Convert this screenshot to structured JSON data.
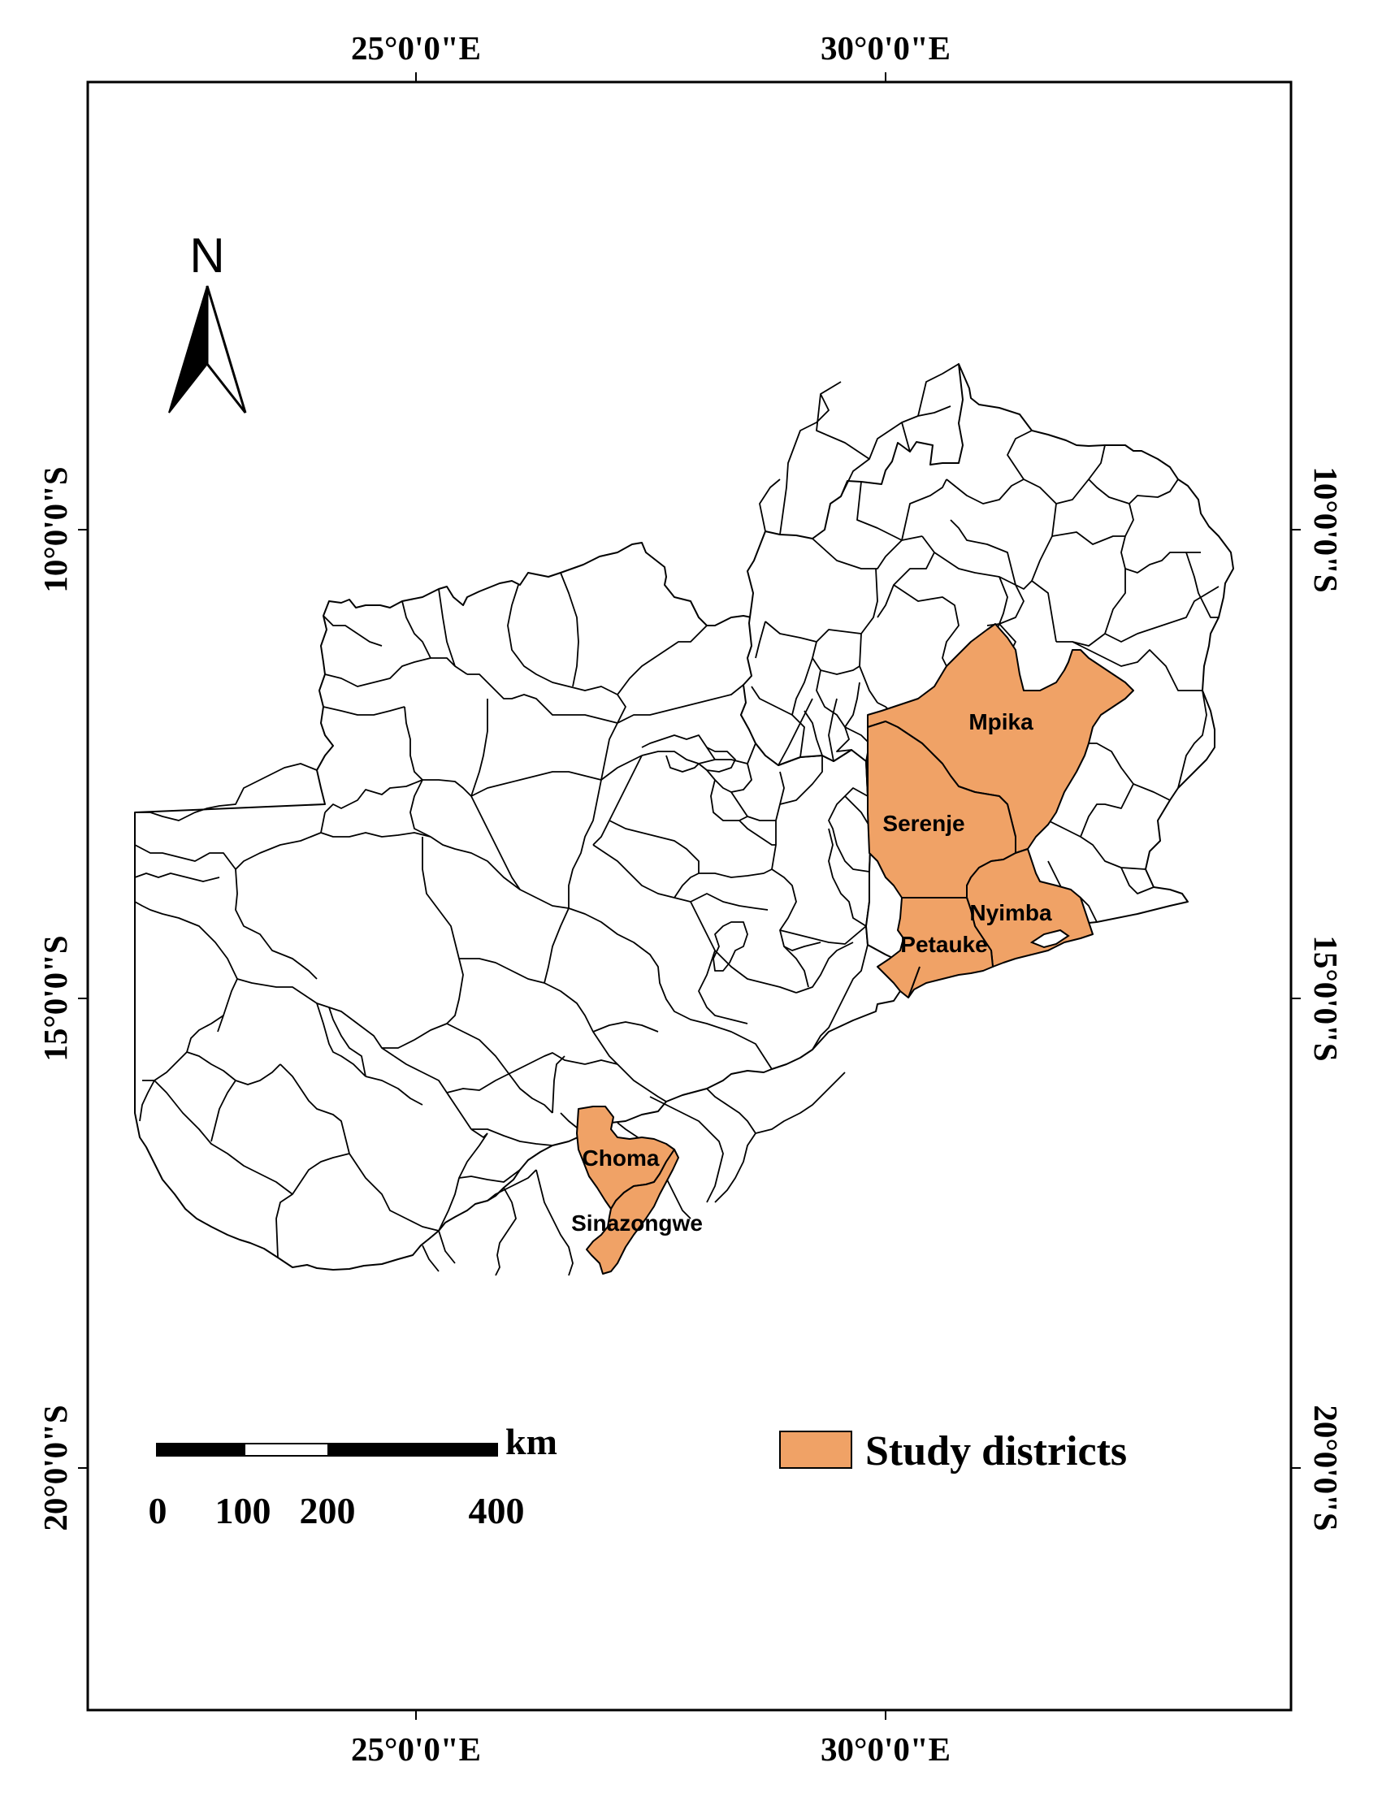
{
  "map": {
    "graticule": {
      "longitudes": [
        "25°0'0\"E",
        "30°0'0\"E"
      ],
      "latitudes": [
        "10°0'0\"S",
        "15°0'0\"S",
        "20°0'0\"S"
      ]
    },
    "north_arrow": {
      "label": "N"
    },
    "scale_bar": {
      "unit": "km",
      "ticks": [
        "0",
        "100",
        "200",
        "400"
      ]
    },
    "legend": {
      "label": "Study districts",
      "color": "#f0a266"
    },
    "study_districts": [
      "Mpika",
      "Serenje",
      "Nyimba",
      "Petauke",
      "Choma",
      "Sinazongwe"
    ],
    "colors": {
      "study_fill": "#f0a266",
      "background": "#ffffff",
      "line": "#000000"
    }
  }
}
